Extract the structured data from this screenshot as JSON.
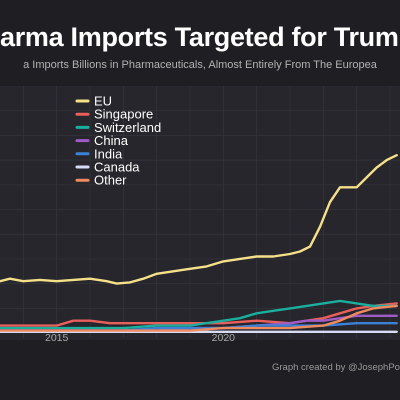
{
  "chart_data": {
    "type": "line",
    "title": "arma Imports Targeted for Trump",
    "subtitle": "a Imports Billions in Pharmaceuticals, Almost Entirely From The Europea",
    "xlabel": "",
    "ylabel": "",
    "xlim": [
      2013.3,
      2025.3
    ],
    "ylim": [
      -2,
      100
    ],
    "x_ticks": [
      2015,
      2020
    ],
    "x_tick_labels": [
      "2015",
      "2020"
    ],
    "grid": true,
    "legend_position": "top-left",
    "credit": "Graph created by @JosephPolita",
    "series": [
      {
        "name": "EU",
        "color": "#f5e08a",
        "x": [
          2013.3,
          2013.6,
          2014.0,
          2014.5,
          2015.0,
          2015.5,
          2016.0,
          2016.5,
          2016.8,
          2017.2,
          2017.6,
          2018.0,
          2018.5,
          2019.0,
          2019.5,
          2020.0,
          2020.5,
          2021.0,
          2021.5,
          2022.0,
          2022.3,
          2022.6,
          2022.9,
          2023.2,
          2023.5,
          2023.8,
          2024.0,
          2024.3,
          2024.6,
          2024.9,
          2025.2
        ],
        "values": [
          21,
          22,
          21,
          21.5,
          21,
          21.5,
          22,
          21,
          20,
          20.5,
          22,
          24,
          25,
          26,
          27,
          29,
          30,
          31,
          31,
          32,
          33,
          35,
          43,
          53,
          59,
          59,
          59,
          63,
          67,
          70,
          72
        ]
      },
      {
        "name": "Singapore",
        "color": "#e8605c",
        "x": [
          2013.3,
          2014.0,
          2015.0,
          2015.5,
          2016.0,
          2016.6,
          2017.0,
          2018.0,
          2019.0,
          2020.0,
          2021.0,
          2022.0,
          2022.5,
          2023.0,
          2023.5,
          2024.0,
          2024.5,
          2025.2
        ],
        "values": [
          3,
          3,
          3,
          5,
          5,
          4,
          4,
          4,
          4,
          4,
          5,
          4,
          5,
          6,
          8,
          10,
          11,
          12
        ]
      },
      {
        "name": "Switzerland",
        "color": "#1bae9e",
        "x": [
          2013.3,
          2014.0,
          2015.0,
          2016.0,
          2017.0,
          2018.0,
          2019.0,
          2020.0,
          2020.5,
          2021.0,
          2021.5,
          2022.0,
          2022.5,
          2023.0,
          2023.5,
          2024.0,
          2024.5,
          2025.2
        ],
        "values": [
          2,
          2,
          2,
          2,
          2,
          3,
          3,
          5,
          6,
          8,
          9,
          10,
          11,
          12,
          13,
          12,
          11,
          11
        ]
      },
      {
        "name": "China",
        "color": "#a05cc6",
        "x": [
          2013.3,
          2014.0,
          2015.0,
          2016.0,
          2017.0,
          2018.0,
          2019.0,
          2020.0,
          2021.0,
          2022.0,
          2022.5,
          2023.0,
          2023.5,
          2024.0,
          2024.5,
          2025.2
        ],
        "values": [
          1,
          1,
          1,
          1,
          1,
          1,
          2,
          2,
          3,
          4,
          5,
          5,
          6,
          7,
          7,
          7
        ]
      },
      {
        "name": "India",
        "color": "#3b82d6",
        "x": [
          2013.3,
          2014.0,
          2015.0,
          2016.0,
          2017.0,
          2018.0,
          2019.0,
          2020.0,
          2021.0,
          2022.0,
          2023.0,
          2024.0,
          2025.2
        ],
        "values": [
          1,
          1,
          1,
          1,
          1,
          2,
          2,
          2,
          3,
          3,
          3,
          4,
          4
        ]
      },
      {
        "name": "Canada",
        "color": "#d6ddf5",
        "x": [
          2013.3,
          2014.0,
          2015.0,
          2016.0,
          2017.0,
          2018.0,
          2019.0,
          2020.0,
          2021.0,
          2022.0,
          2023.0,
          2024.0,
          2025.2
        ],
        "values": [
          0.5,
          0.5,
          0.5,
          0.5,
          0.5,
          0.5,
          0.5,
          0.5,
          0.5,
          0.5,
          0.5,
          0.5,
          0.5
        ]
      },
      {
        "name": "Other",
        "color": "#f08a60",
        "x": [
          2013.3,
          2014.0,
          2015.0,
          2016.0,
          2017.0,
          2018.0,
          2019.0,
          2020.0,
          2021.0,
          2022.0,
          2023.0,
          2023.5,
          2024.0,
          2024.5,
          2025.2
        ],
        "values": [
          1,
          1,
          1,
          1,
          1,
          1,
          1,
          2,
          2,
          2,
          3,
          5,
          8,
          10,
          11
        ]
      }
    ]
  }
}
